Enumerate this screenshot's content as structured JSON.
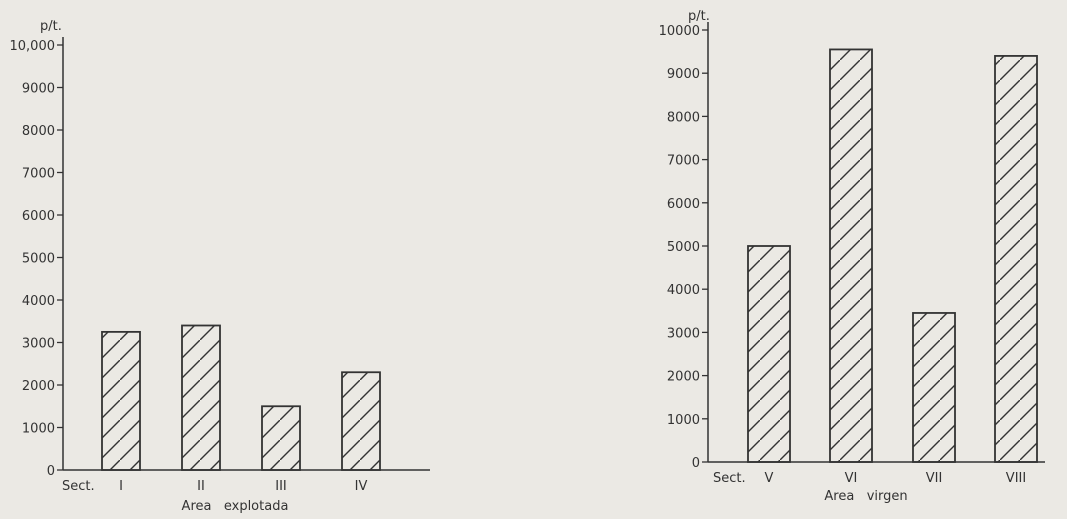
{
  "chart_data": [
    {
      "type": "bar",
      "ylabel": "p/t.",
      "xlabel": "Area   explotada",
      "x_prefix": "Sect.",
      "categories": [
        "I",
        "II",
        "III",
        "IV"
      ],
      "values": [
        3250,
        3400,
        1500,
        2300
      ],
      "ylim": [
        0,
        10000
      ],
      "yticks": [
        0,
        1000,
        2000,
        3000,
        4000,
        5000,
        6000,
        7000,
        8000,
        9000,
        10000
      ],
      "ytick_labels": [
        "0",
        "1000",
        "2000",
        "3000",
        "4000",
        "5000",
        "6000",
        "7000",
        "8000",
        "9000",
        "10,000"
      ],
      "grid": false,
      "pattern": "diagonal-hatch"
    },
    {
      "type": "bar",
      "ylabel": "p/t.",
      "xlabel": "Area   virgen",
      "x_prefix": "Sect.",
      "categories": [
        "V",
        "VI",
        "VII",
        "VIII"
      ],
      "values": [
        5000,
        9550,
        3450,
        9400
      ],
      "ylim": [
        0,
        10000
      ],
      "yticks": [
        0,
        1000,
        2000,
        3000,
        4000,
        5000,
        6000,
        7000,
        8000,
        9000,
        10000
      ],
      "ytick_labels": [
        "0",
        "1000",
        "2000",
        "3000",
        "4000",
        "5000",
        "6000",
        "7000",
        "8000",
        "9000",
        "10000"
      ],
      "grid": false,
      "pattern": "diagonal-hatch"
    }
  ],
  "colors": {
    "background": "#ebe9e4",
    "ink": "#333333"
  }
}
